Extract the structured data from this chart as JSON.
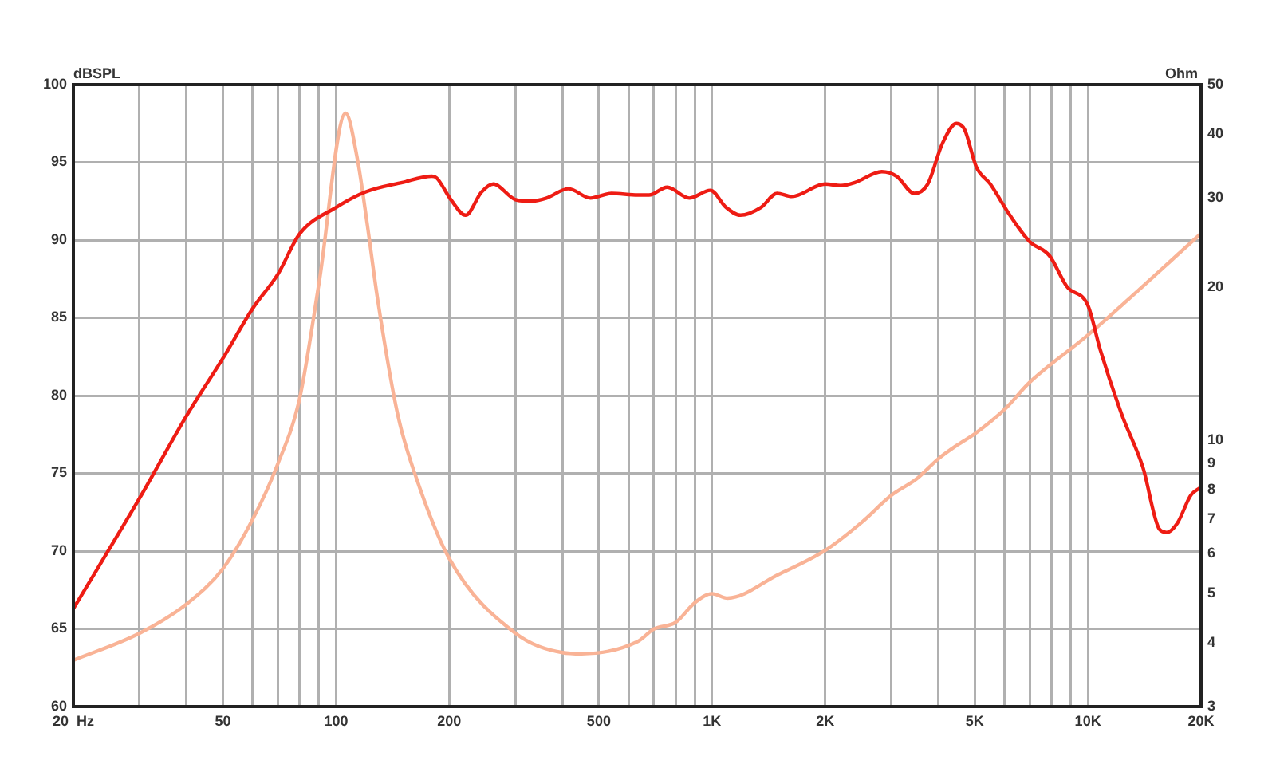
{
  "chart_data": {
    "type": "line",
    "ylabel": "Ohm",
    "y2label": "dBSPL",
    "xlim": [
      20,
      20000
    ],
    "xticks": [
      {
        "value": 20,
        "label": "20  Hz"
      },
      {
        "value": 30,
        "label": null
      },
      {
        "value": 40,
        "label": null
      },
      50,
      {
        "value": 60,
        "label": null
      },
      {
        "value": 70,
        "label": null
      },
      {
        "value": 80,
        "label": null
      },
      {
        "value": 90,
        "label": null
      },
      100,
      200,
      {
        "value": 300,
        "label": null
      },
      {
        "value": 400,
        "label": null
      },
      500,
      {
        "value": 600,
        "label": null
      },
      {
        "value": 700,
        "label": null
      },
      {
        "value": 800,
        "label": null
      },
      {
        "value": 900,
        "label": null
      },
      {
        "value": 1000,
        "label": "1K"
      },
      {
        "value": 2000,
        "label": "2K"
      },
      {
        "value": 3000,
        "label": null
      },
      {
        "value": 4000,
        "label": null
      },
      {
        "value": 5000,
        "label": "5K"
      },
      {
        "value": 6000,
        "label": null
      },
      {
        "value": 7000,
        "label": null
      },
      {
        "value": 8000,
        "label": null
      },
      {
        "value": 9000,
        "label": null
      },
      {
        "value": 10000,
        "label": "10K"
      },
      {
        "value": 20000,
        "label": "20K"
      }
    ],
    "ylim": [
      3,
      50
    ],
    "yticks": [
      3,
      4,
      5,
      6,
      7,
      8,
      9,
      10,
      20,
      30,
      40,
      50
    ],
    "y2lim": [
      60,
      100
    ],
    "y2ticks": [
      60,
      65,
      70,
      75,
      80,
      85,
      90,
      95,
      100
    ],
    "log": "xy",
    "grid": true,
    "legend": false,
    "marker": "none",
    "line_style": "solid",
    "series": [
      {
        "color": "#f9b396",
        "axis": "y",
        "x": [
          20,
          30,
          40,
          50,
          60,
          70,
          80,
          90,
          106,
          114,
          121,
          129,
          146,
          162,
          200,
          300,
          400,
          450,
          635,
          700,
          800,
          900,
          1000,
          1100,
          1500,
          2000,
          2500,
          3000,
          3500,
          4000,
          4500,
          5000,
          6000,
          7000,
          10000,
          20000
        ],
        "values": [
          3.7,
          4.18,
          4.77,
          5.6,
          7.0,
          9.0,
          12.1,
          20.3,
          43.9,
          35.6,
          26.6,
          18.9,
          11.2,
          8.6,
          5.86,
          4.18,
          3.83,
          3.81,
          4.03,
          4.26,
          4.39,
          4.8,
          5.0,
          4.9,
          5.45,
          6.08,
          6.9,
          7.8,
          8.4,
          9.2,
          9.8,
          10.3,
          11.5,
          13.0,
          16.1,
          25.5
        ]
      },
      {
        "color": "#ee1c14",
        "axis": "y2",
        "x": [
          20,
          30,
          40,
          50,
          60,
          70,
          80,
          100,
          120,
          150,
          180,
          185,
          202,
          221,
          244,
          262,
          300,
          330,
          363,
          415,
          475,
          540,
          635,
          680,
          760,
          870,
          990,
          1090,
          1190,
          1350,
          1490,
          1630,
          2000,
          2200,
          2400,
          2830,
          3100,
          3450,
          3750,
          4100,
          4470,
          4700,
          5050,
          5500,
          6200,
          7000,
          7900,
          8800,
          10000,
          10800,
          12300,
          14000,
          15500,
          16200,
          17300,
          18800,
          20000
        ],
        "values": [
          66.3,
          73.4,
          78.7,
          82.4,
          85.6,
          87.8,
          90.4,
          92.1,
          93.1,
          93.7,
          94.1,
          94.0,
          92.6,
          91.6,
          93.1,
          93.6,
          92.6,
          92.5,
          92.7,
          93.3,
          92.7,
          93.0,
          92.9,
          92.9,
          93.4,
          92.7,
          93.2,
          92.1,
          91.6,
          92.1,
          93.0,
          92.8,
          93.6,
          93.5,
          93.7,
          94.4,
          94.1,
          93.0,
          93.6,
          96.2,
          97.5,
          97.1,
          94.7,
          93.6,
          91.6,
          89.9,
          89.0,
          87.0,
          85.8,
          82.9,
          78.8,
          75.4,
          71.4,
          71.2,
          71.8,
          73.6,
          74.1
        ]
      }
    ]
  }
}
